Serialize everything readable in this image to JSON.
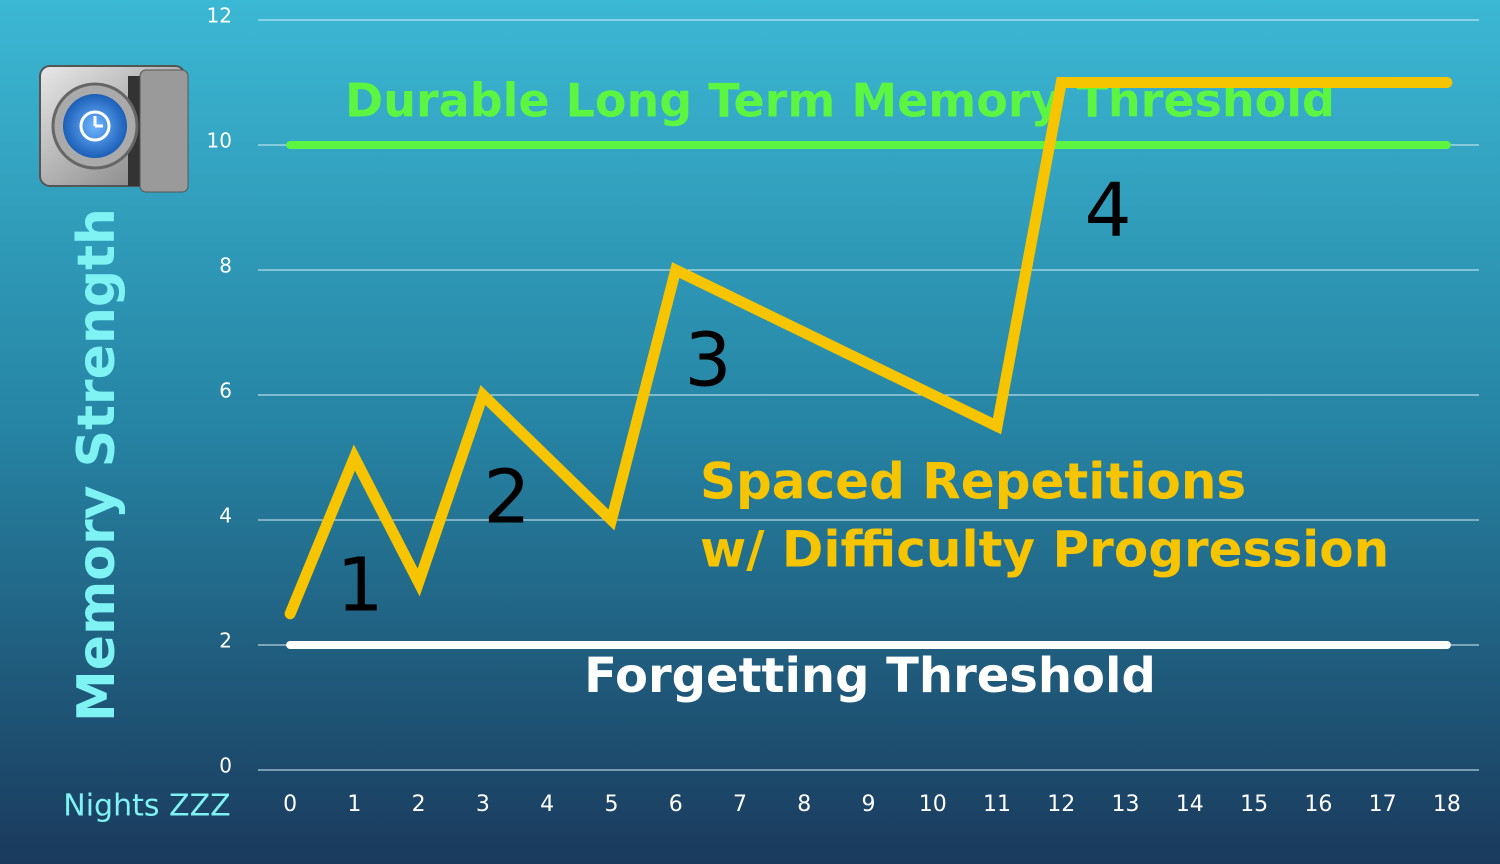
{
  "chart_data": {
    "type": "line",
    "ylabel": "Memory Strength",
    "xlabel": "Nights ZZZ",
    "xlim": [
      -0.5,
      18.5
    ],
    "xticks": [
      0,
      1,
      2,
      3,
      4,
      5,
      6,
      7,
      8,
      9,
      10,
      11,
      12,
      13,
      14,
      15,
      16,
      17,
      18
    ],
    "ylim": [
      0,
      12
    ],
    "yticks": [
      0,
      2,
      4,
      6,
      8,
      10,
      12
    ],
    "grid": true,
    "series": [
      {
        "color": "#f7c400",
        "x": [
          0,
          1,
          2,
          3,
          5,
          6,
          11,
          12,
          18
        ],
        "values": [
          2.5,
          5,
          3,
          6,
          4,
          8,
          5.5,
          11,
          11
        ]
      }
    ],
    "hlines": [
      {
        "value": 10,
        "label": "Durable Long Term Memory Threshold",
        "color": "#5cf542"
      },
      {
        "value": 2,
        "label": "Forgetting Threshold",
        "color": "#ffffff"
      }
    ],
    "annotations": [
      "1",
      "2",
      "3",
      "4",
      "Spaced Repetitions",
      "w/ Difficulty Progression"
    ]
  }
}
